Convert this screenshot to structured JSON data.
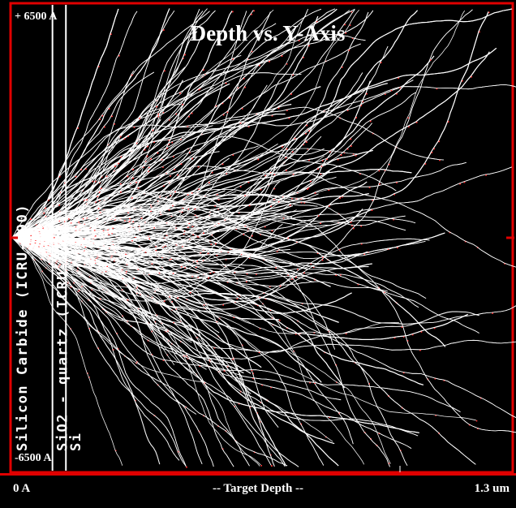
{
  "chart_data": {
    "type": "scatter",
    "title": "Depth vs. Y-Axis",
    "xlabel": "-- Target Depth --",
    "x_min_label": "0 A",
    "x_max_label": "1.3 um",
    "y_max_label": "+ 6500 A",
    "y_min_label": "-6500 A",
    "xlim": [
      0,
      13000
    ],
    "ylim": [
      -6500,
      6500
    ],
    "x_unit": "A",
    "y_unit": "A",
    "grid": false,
    "layers": [
      {
        "label": "Silicon Carbide (ICRU-590)",
        "start": 0,
        "end": 1050
      },
      {
        "label": "SiO2 - quartz (ICRU-245)",
        "start": 1050,
        "end": 1400
      },
      {
        "label": "Si",
        "start": 1400,
        "end": 13000
      }
    ],
    "series": [
      {
        "color": "#ffffff",
        "role": "ion-track"
      },
      {
        "color": "#ff3030",
        "role": "collision-event"
      }
    ],
    "colors": {
      "frame": "#e00000",
      "background": "#000000",
      "text": "#ffffff"
    }
  }
}
